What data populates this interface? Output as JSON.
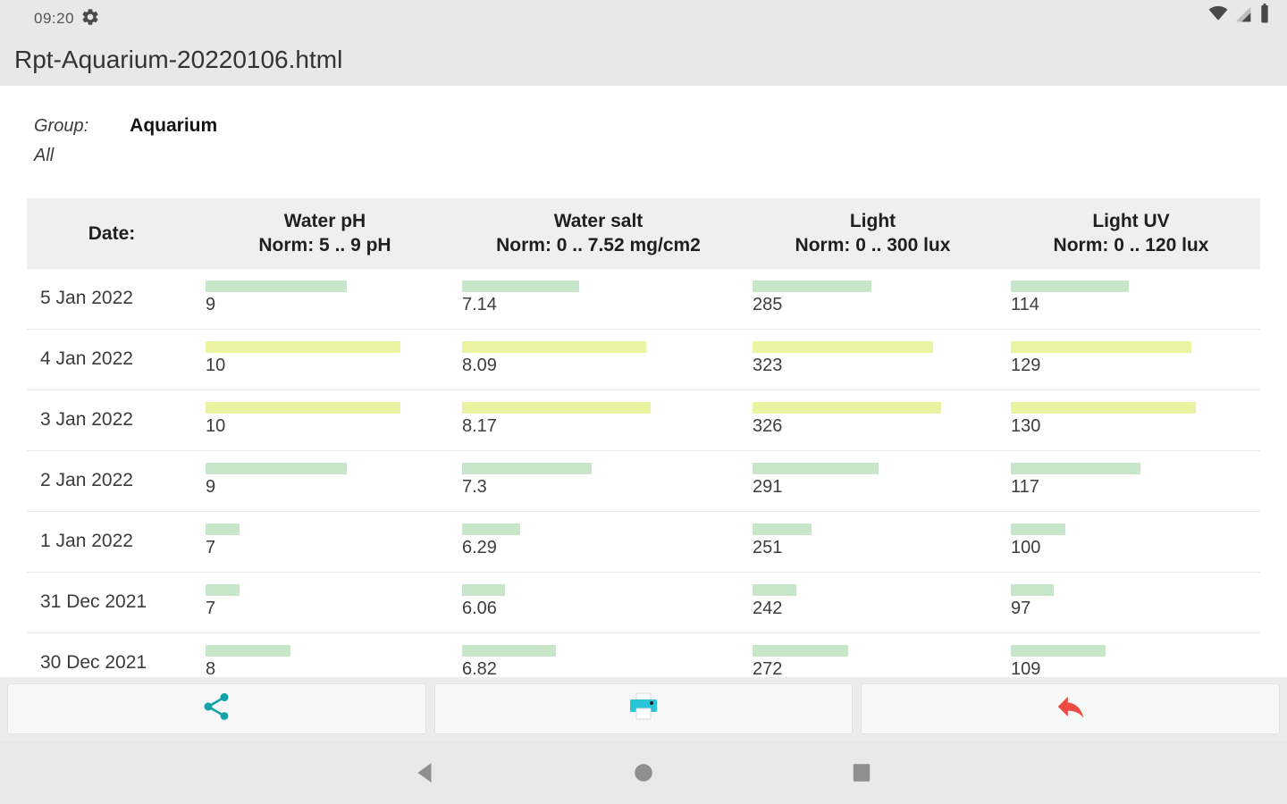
{
  "status_bar": {
    "time": "09:20"
  },
  "title_bar": {
    "title": "Rpt-Aquarium-20220106.html"
  },
  "report_header": {
    "group_label": "Group:",
    "group_value": "Aquarium",
    "scope": "All"
  },
  "table": {
    "date_header": "Date:",
    "columns": [
      {
        "label": "Water pH",
        "norm": "Norm: 5 .. 9 pH"
      },
      {
        "label": "Water salt",
        "norm": "Norm: 0 .. 7.52 mg/cm2"
      },
      {
        "label": "Light",
        "norm": "Norm: 0 .. 300 lux"
      },
      {
        "label": "Light UV",
        "norm": "Norm: 0 .. 120 lux"
      }
    ],
    "rows": [
      {
        "date": "5 Jan 2022",
        "values": [
          "9",
          "7.14",
          "285",
          "114"
        ],
        "bars": [
          158,
          131,
          133,
          132
        ],
        "status": [
          "in",
          "in",
          "in",
          "in"
        ]
      },
      {
        "date": "4 Jan 2022",
        "values": [
          "10",
          "8.09",
          "323",
          "129"
        ],
        "bars": [
          218,
          206,
          202,
          202
        ],
        "status": [
          "out",
          "out",
          "out",
          "out"
        ]
      },
      {
        "date": "3 Jan 2022",
        "values": [
          "10",
          "8.17",
          "326",
          "130"
        ],
        "bars": [
          218,
          211,
          211,
          207
        ],
        "status": [
          "out",
          "out",
          "out",
          "out"
        ]
      },
      {
        "date": "2 Jan 2022",
        "values": [
          "9",
          "7.3",
          "291",
          "117"
        ],
        "bars": [
          158,
          145,
          141,
          145
        ],
        "status": [
          "in",
          "in",
          "in",
          "in"
        ]
      },
      {
        "date": "1 Jan 2022",
        "values": [
          "7",
          "6.29",
          "251",
          "100"
        ],
        "bars": [
          38,
          65,
          66,
          61
        ],
        "status": [
          "in",
          "in",
          "in",
          "in"
        ]
      },
      {
        "date": "31 Dec 2021",
        "values": [
          "7",
          "6.06",
          "242",
          "97"
        ],
        "bars": [
          38,
          48,
          49,
          48
        ],
        "status": [
          "in",
          "in",
          "in",
          "in"
        ]
      },
      {
        "date": "30 Dec 2021",
        "values": [
          "8",
          "6.82",
          "272",
          "109"
        ],
        "bars": [
          95,
          105,
          107,
          106
        ],
        "status": [
          "in",
          "in",
          "in",
          "in"
        ]
      }
    ]
  },
  "colors": {
    "bar_in": "#c8e6c9",
    "bar_out": "#e9f3a1",
    "share_icon": "#13a2aa",
    "print_icon": "#29c4d8",
    "undo_icon": "#ee4b43"
  },
  "toolbar": {
    "buttons": [
      "share",
      "print",
      "back"
    ]
  }
}
